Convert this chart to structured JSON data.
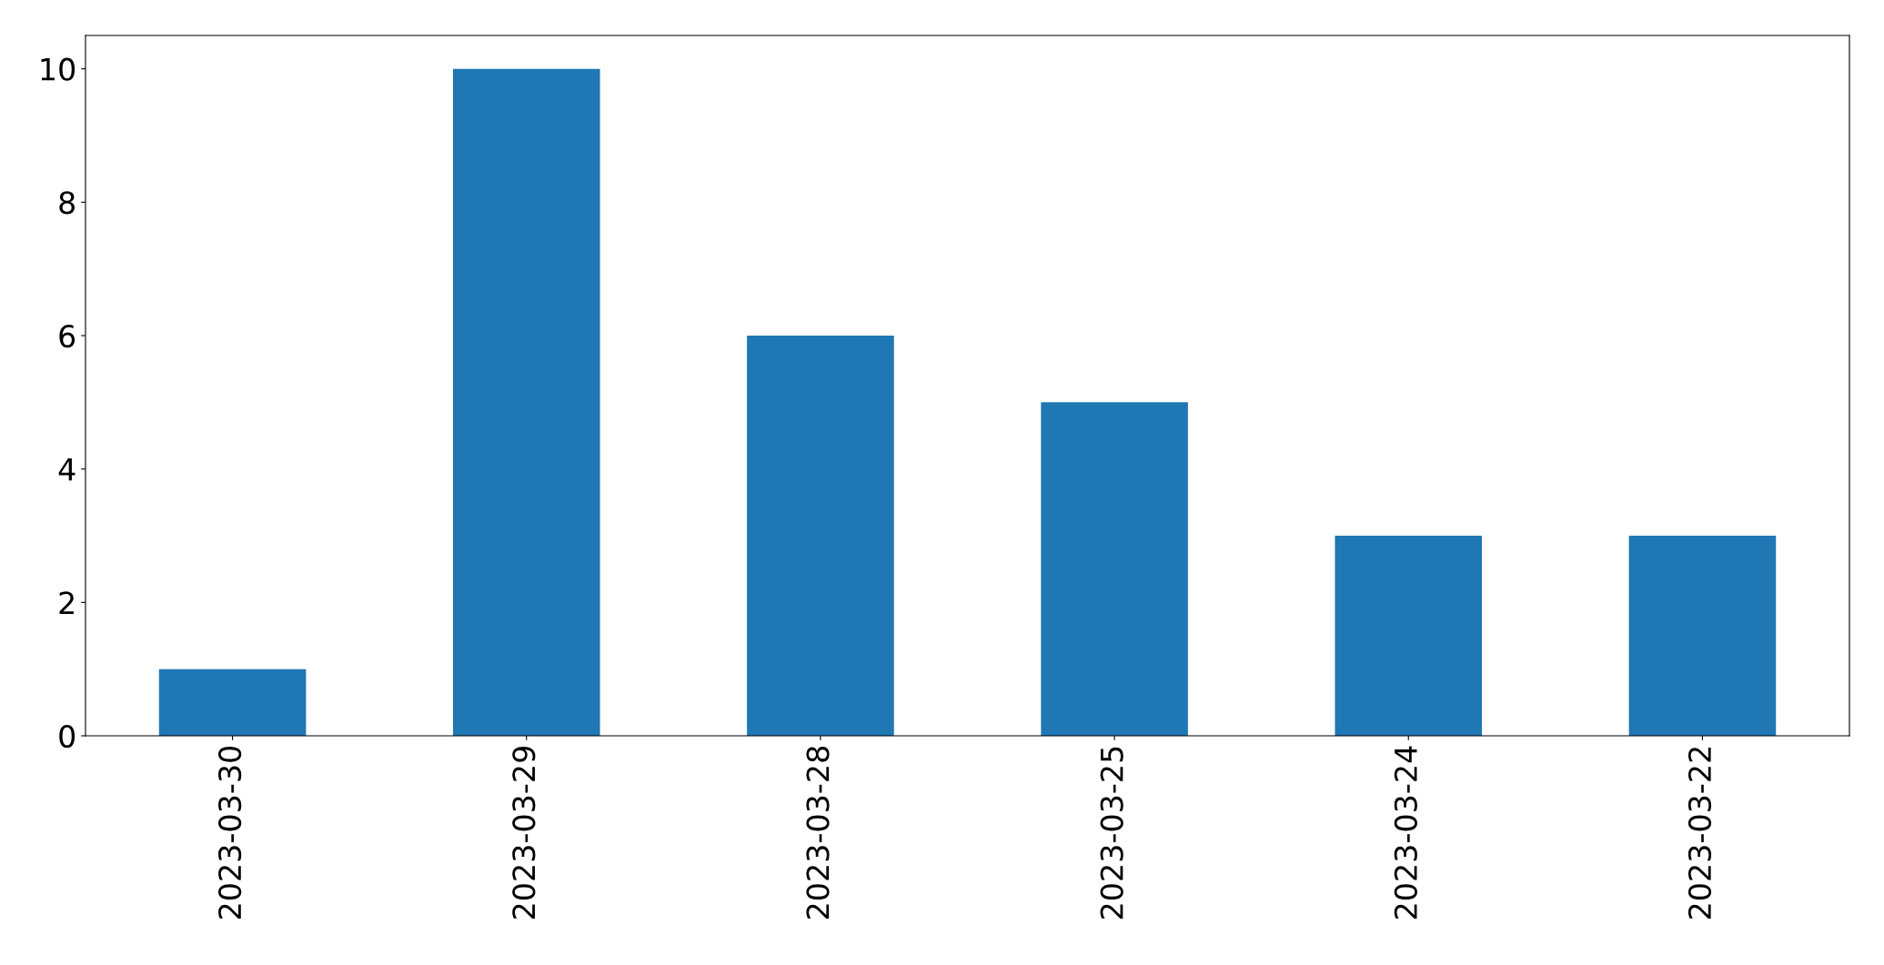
{
  "chart_data": {
    "type": "bar",
    "categories": [
      "2023-03-30",
      "2023-03-29",
      "2023-03-28",
      "2023-03-25",
      "2023-03-24",
      "2023-03-22"
    ],
    "values": [
      1,
      10,
      6,
      5,
      3,
      3
    ],
    "color": "#1f77b4",
    "ylim": [
      0,
      10.5
    ],
    "yticks": [
      0,
      2,
      4,
      6,
      8,
      10
    ],
    "grid": false,
    "legend": false
  }
}
